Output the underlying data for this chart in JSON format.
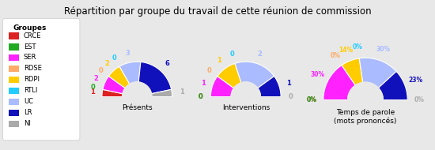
{
  "title": "Répartition par groupe du travail de cette réunion de commission",
  "background_color": "#e8e8e8",
  "groups": [
    "CRCE",
    "EST",
    "SER",
    "RDSE",
    "RDPI",
    "RTLI",
    "UC",
    "LR",
    "NI"
  ],
  "colors": [
    "#dd2222",
    "#22aa22",
    "#ff22ff",
    "#ffaa66",
    "#ffcc00",
    "#22ccff",
    "#aabbff",
    "#1111bb",
    "#aaaaaa"
  ],
  "charts": [
    {
      "title": "Présents",
      "values": [
        1,
        0,
        2,
        0,
        2,
        0,
        3,
        6,
        1
      ],
      "labels": [
        "1",
        "0",
        "2",
        "0",
        "2",
        "0",
        "3",
        "6",
        "1"
      ]
    },
    {
      "title": "Interventions",
      "values": [
        0,
        0,
        1,
        0,
        1,
        0,
        2,
        1,
        0
      ],
      "labels": [
        "0",
        "0",
        "1",
        "0",
        "1",
        "0",
        "2",
        "1",
        "0"
      ]
    },
    {
      "title": "Temps de parole\n(mots prononcés)",
      "values": [
        0,
        0,
        30,
        0,
        14,
        0,
        30,
        23,
        0
      ],
      "labels": [
        "0%",
        "0%",
        "30%",
        "0%",
        "14%",
        "0%",
        "30%",
        "23%",
        "0%"
      ]
    }
  ]
}
